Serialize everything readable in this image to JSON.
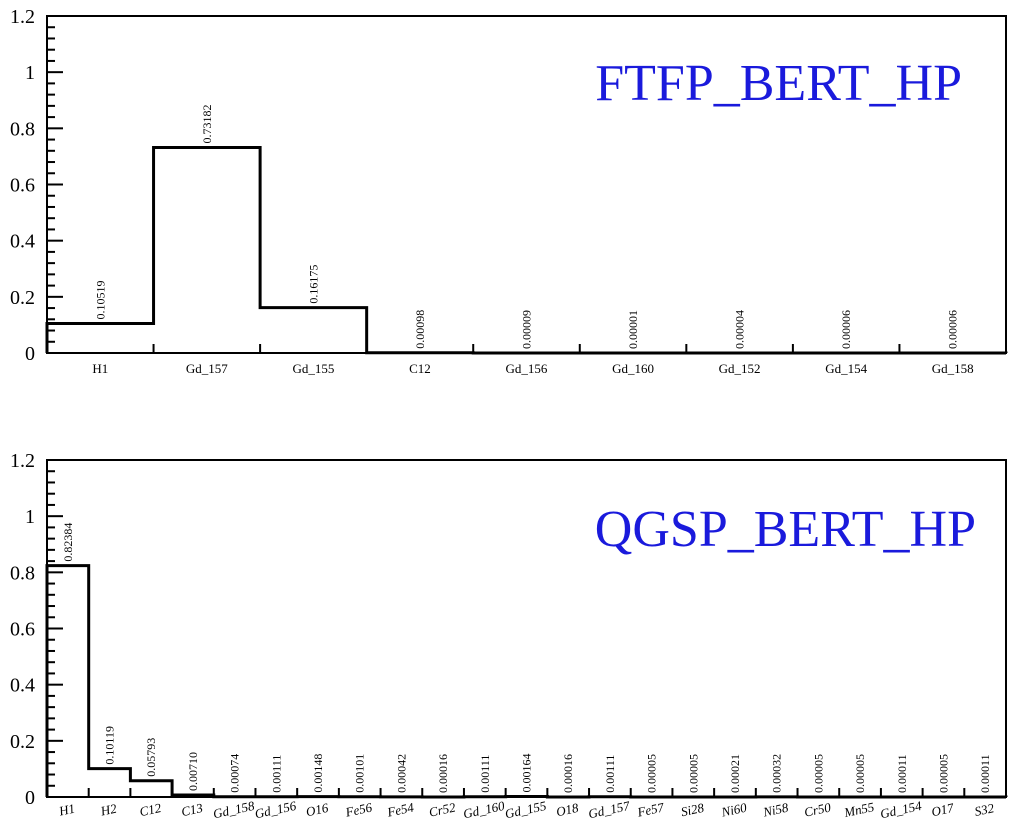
{
  "chart_data": [
    {
      "type": "bar",
      "title": "FTFP_BERT_HP",
      "ylim": [
        0,
        1.2
      ],
      "yticks": [
        "0",
        "0.2",
        "0.4",
        "0.6",
        "0.8",
        "1",
        "1.2"
      ],
      "label_style": "upright",
      "categories": [
        "H1",
        "Gd_157",
        "Gd_155",
        "C12",
        "Gd_156",
        "Gd_160",
        "Gd_152",
        "Gd_154",
        "Gd_158"
      ],
      "values": [
        0.10519,
        0.73182,
        0.16175,
        0.00098,
        9e-05,
        1e-05,
        4e-05,
        6e-05,
        6e-05
      ],
      "value_labels": [
        "0.10519",
        "0.73182",
        "0.16175",
        "0.00098",
        "0.00009",
        "0.00001",
        "0.00004",
        "0.00006",
        "0.00006"
      ],
      "line_color": "#000000",
      "title_color": "#1a1adc"
    },
    {
      "type": "bar",
      "title": "QGSP_BERT_HP",
      "ylim": [
        0,
        1.2
      ],
      "yticks": [
        "0",
        "0.2",
        "0.4",
        "0.6",
        "0.8",
        "1",
        "1.2"
      ],
      "label_style": "italic-slanted",
      "categories": [
        "H1",
        "H2",
        "C12",
        "C13",
        "Gd_158",
        "Gd_156",
        "O16",
        "Fe56",
        "Fe54",
        "Cr52",
        "Gd_160",
        "Gd_155",
        "O18",
        "Gd_157",
        "Fe57",
        "Si28",
        "Ni60",
        "Ni58",
        "Cr50",
        "Mn55",
        "Gd_154",
        "O17",
        "S32"
      ],
      "values": [
        0.82384,
        0.10119,
        0.05793,
        0.0071,
        0.00074,
        0.00111,
        0.00148,
        0.00101,
        0.00042,
        0.00016,
        0.00111,
        0.00164,
        0.00016,
        0.00111,
        5e-05,
        5e-05,
        0.00021,
        0.00032,
        5e-05,
        5e-05,
        0.00011,
        5e-05,
        0.00011
      ],
      "value_labels": [
        "0.82384",
        "0.10119",
        "0.05793",
        "0.00710",
        "0.00074",
        "0.00111",
        "0.00148",
        "0.00101",
        "0.00042",
        "0.00016",
        "0.00111",
        "0.00164",
        "0.00016",
        "0.00111",
        "0.00005",
        "0.00005",
        "0.00021",
        "0.00032",
        "0.00005",
        "0.00005",
        "0.00011",
        "0.00005",
        "0.00011"
      ],
      "line_color": "#000000",
      "title_color": "#1a1adc"
    }
  ]
}
